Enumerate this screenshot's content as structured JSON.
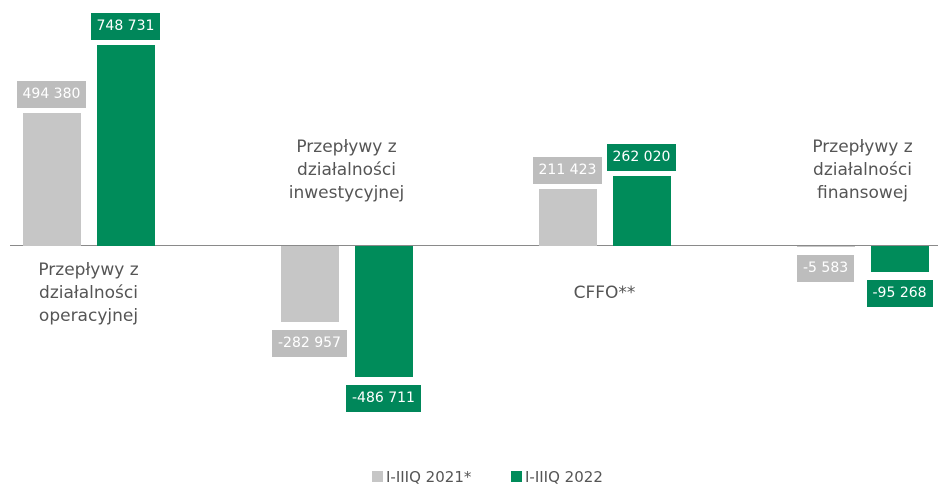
{
  "chart_data": {
    "type": "bar",
    "categories": [
      "Przepływy z działalności operacyjnej",
      "Przepływy z działalności inwestycyjnej",
      "CFFO**",
      "Przepływy z działalności finansowej"
    ],
    "series": [
      {
        "name": "I-IIIQ 2021*",
        "color": "#c6c6c6",
        "label_color": "#bdbdbd",
        "values": [
          494380,
          -282957,
          211423,
          -5583
        ],
        "value_labels": [
          "494 380",
          "-282 957",
          "211 423",
          "-5 583"
        ]
      },
      {
        "name": "I-IIIQ 2022",
        "color": "#008c5a",
        "label_color": "#00875a",
        "values": [
          748731,
          -486711,
          262020,
          -95268
        ],
        "value_labels": [
          "748 731",
          "-486 711",
          "262 020",
          "-95 268"
        ]
      }
    ],
    "ylim": [
      -800000,
      900000
    ]
  }
}
